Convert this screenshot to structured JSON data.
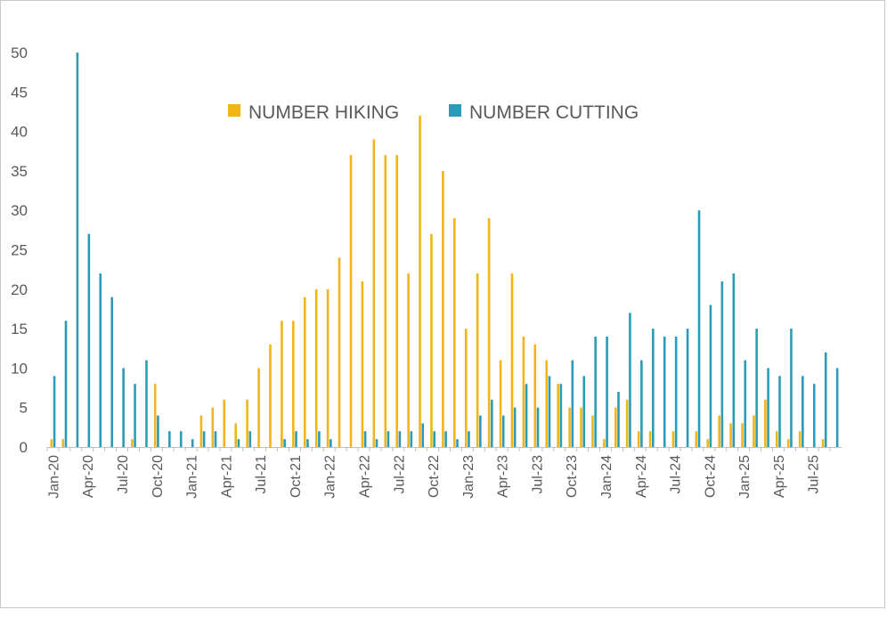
{
  "chart_data": {
    "type": "bar",
    "title": "",
    "xlabel": "",
    "ylabel": "",
    "ylim": [
      0,
      50
    ],
    "yticks": [
      0,
      5,
      10,
      15,
      20,
      25,
      30,
      35,
      40,
      45,
      50
    ],
    "legend_position": "top-center",
    "grid": false,
    "categories": [
      "Jan-20",
      "Feb-20",
      "Mar-20",
      "Apr-20",
      "May-20",
      "Jun-20",
      "Jul-20",
      "Aug-20",
      "Sep-20",
      "Oct-20",
      "Nov-20",
      "Dec-20",
      "Jan-21",
      "Feb-21",
      "Mar-21",
      "Apr-21",
      "May-21",
      "Jun-21",
      "Jul-21",
      "Aug-21",
      "Sep-21",
      "Oct-21",
      "Nov-21",
      "Dec-21",
      "Jan-22",
      "Feb-22",
      "Mar-22",
      "Apr-22",
      "May-22",
      "Jun-22",
      "Jul-22",
      "Aug-22",
      "Sep-22",
      "Oct-22",
      "Nov-22",
      "Dec-22",
      "Jan-23",
      "Feb-23",
      "Mar-23",
      "Apr-23",
      "May-23",
      "Jun-23",
      "Jul-23",
      "Aug-23",
      "Sep-23",
      "Oct-23",
      "Nov-23",
      "Dec-23",
      "Jan-24",
      "Feb-24",
      "Mar-24",
      "Apr-24",
      "May-24",
      "Jun-24",
      "Jul-24",
      "Aug-24",
      "Sep-24",
      "Oct-24",
      "Nov-24",
      "Dec-24",
      "Jan-25",
      "Feb-25",
      "Mar-25",
      "Apr-25",
      "May-25",
      "Jun-25",
      "Jul-25",
      "Aug-25",
      "Sep-25"
    ],
    "xtick_labels": [
      "Jan-20",
      "Apr-20",
      "Jul-20",
      "Oct-20",
      "Jan-21",
      "Apr-21",
      "Jul-21",
      "Oct-21",
      "Jan-22",
      "Apr-22",
      "Jul-22",
      "Oct-22",
      "Jan-23",
      "Apr-23",
      "Jul-23",
      "Oct-23",
      "Jan-24",
      "Apr-24",
      "Jul-24",
      "Oct-24",
      "Jan-25",
      "Apr-25",
      "Jul-25"
    ],
    "series": [
      {
        "name": "NUMBER HIKING",
        "color": "#f2b519",
        "values": [
          1,
          1,
          0,
          0,
          0,
          0,
          0,
          1,
          0,
          8,
          0,
          0,
          0,
          4,
          5,
          6,
          3,
          6,
          10,
          13,
          16,
          16,
          19,
          20,
          20,
          24,
          37,
          21,
          39,
          37,
          37,
          22,
          42,
          27,
          35,
          29,
          15,
          22,
          29,
          11,
          22,
          14,
          13,
          11,
          8,
          5,
          5,
          4,
          1,
          5,
          6,
          2,
          2,
          0,
          2,
          0,
          2,
          1,
          4,
          3,
          3,
          4,
          6,
          2,
          1,
          2,
          0,
          1,
          0
        ]
      },
      {
        "name": "NUMBER CUTTING",
        "color": "#2a9cb8",
        "values": [
          9,
          16,
          50,
          27,
          22,
          19,
          10,
          8,
          11,
          4,
          2,
          2,
          1,
          2,
          2,
          0,
          1,
          2,
          0,
          0,
          1,
          2,
          1,
          2,
          1,
          0,
          0,
          2,
          1,
          2,
          2,
          2,
          3,
          2,
          2,
          1,
          2,
          4,
          6,
          4,
          5,
          8,
          5,
          9,
          8,
          11,
          9,
          14,
          14,
          7,
          17,
          11,
          15,
          14,
          14,
          15,
          30,
          18,
          21,
          22,
          11,
          15,
          10,
          9,
          15,
          9,
          8,
          12,
          10
        ]
      }
    ]
  }
}
